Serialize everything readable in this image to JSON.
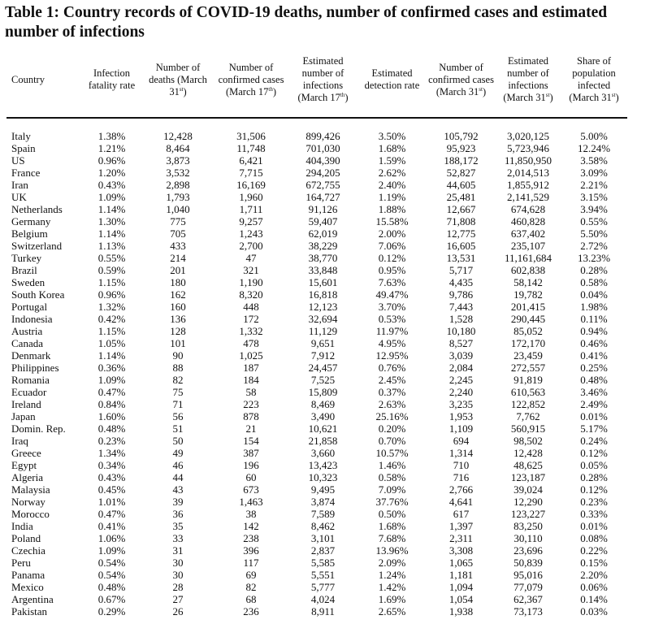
{
  "title": "Table 1: Country records of COVID-19 deaths, number of confirmed cases and estimated number of infections",
  "headers": [
    {
      "text": "Country",
      "sup": "",
      "tail": ""
    },
    {
      "text": "Infection fatality rate",
      "sup": "",
      "tail": ""
    },
    {
      "text": "Number of deaths (March 31",
      "sup": "st",
      "tail": ")"
    },
    {
      "text": "Number of confirmed cases (March 17",
      "sup": "th",
      "tail": ")"
    },
    {
      "text": "Estimated number of infections (March 17",
      "sup": "th",
      "tail": ")"
    },
    {
      "text": "Estimated detection rate",
      "sup": "",
      "tail": ""
    },
    {
      "text": "Number of confirmed cases (March 31",
      "sup": "st",
      "tail": ")"
    },
    {
      "text": "Estimated number of infections (March 31",
      "sup": "st",
      "tail": ")"
    },
    {
      "text": "Share of population infected (March 31",
      "sup": "st",
      "tail": ")"
    }
  ],
  "rows": [
    [
      "Italy",
      "1.38%",
      "12,428",
      "31,506",
      "899,426",
      "3.50%",
      "105,792",
      "3,020,125",
      "5.00%"
    ],
    [
      "Spain",
      "1.21%",
      "8,464",
      "11,748",
      "701,030",
      "1.68%",
      "95,923",
      "5,723,946",
      "12.24%"
    ],
    [
      "US",
      "0.96%",
      "3,873",
      "6,421",
      "404,390",
      "1.59%",
      "188,172",
      "11,850,950",
      "3.58%"
    ],
    [
      "France",
      "1.20%",
      "3,532",
      "7,715",
      "294,205",
      "2.62%",
      "52,827",
      "2,014,513",
      "3.09%"
    ],
    [
      "Iran",
      "0.43%",
      "2,898",
      "16,169",
      "672,755",
      "2.40%",
      "44,605",
      "1,855,912",
      "2.21%"
    ],
    [
      "UK",
      "1.09%",
      "1,793",
      "1,960",
      "164,727",
      "1.19%",
      "25,481",
      "2,141,529",
      "3.15%"
    ],
    [
      "Netherlands",
      "1.14%",
      "1,040",
      "1,711",
      "91,126",
      "1.88%",
      "12,667",
      "674,628",
      "3.94%"
    ],
    [
      "Germany",
      "1.30%",
      "775",
      "9,257",
      "59,407",
      "15.58%",
      "71,808",
      "460,828",
      "0.55%"
    ],
    [
      "Belgium",
      "1.14%",
      "705",
      "1,243",
      "62,019",
      "2.00%",
      "12,775",
      "637,402",
      "5.50%"
    ],
    [
      "Switzerland",
      "1.13%",
      "433",
      "2,700",
      "38,229",
      "7.06%",
      "16,605",
      "235,107",
      "2.72%"
    ],
    [
      "Turkey",
      "0.55%",
      "214",
      "47",
      "38,770",
      "0.12%",
      "13,531",
      "11,161,684",
      "13.23%"
    ],
    [
      "Brazil",
      "0.59%",
      "201",
      "321",
      "33,848",
      "0.95%",
      "5,717",
      "602,838",
      "0.28%"
    ],
    [
      "Sweden",
      "1.15%",
      "180",
      "1,190",
      "15,601",
      "7.63%",
      "4,435",
      "58,142",
      "0.58%"
    ],
    [
      "South Korea",
      "0.96%",
      "162",
      "8,320",
      "16,818",
      "49.47%",
      "9,786",
      "19,782",
      "0.04%"
    ],
    [
      "Portugal",
      "1.32%",
      "160",
      "448",
      "12,123",
      "3.70%",
      "7,443",
      "201,415",
      "1.98%"
    ],
    [
      "Indonesia",
      "0.42%",
      "136",
      "172",
      "32,694",
      "0.53%",
      "1,528",
      "290,445",
      "0.11%"
    ],
    [
      "Austria",
      "1.15%",
      "128",
      "1,332",
      "11,129",
      "11.97%",
      "10,180",
      "85,052",
      "0.94%"
    ],
    [
      "Canada",
      "1.05%",
      "101",
      "478",
      "9,651",
      "4.95%",
      "8,527",
      "172,170",
      "0.46%"
    ],
    [
      "Denmark",
      "1.14%",
      "90",
      "1,025",
      "7,912",
      "12.95%",
      "3,039",
      "23,459",
      "0.41%"
    ],
    [
      "Philippines",
      "0.36%",
      "88",
      "187",
      "24,457",
      "0.76%",
      "2,084",
      "272,557",
      "0.25%"
    ],
    [
      "Romania",
      "1.09%",
      "82",
      "184",
      "7,525",
      "2.45%",
      "2,245",
      "91,819",
      "0.48%"
    ],
    [
      "Ecuador",
      "0.47%",
      "75",
      "58",
      "15,809",
      "0.37%",
      "2,240",
      "610,563",
      "3.46%"
    ],
    [
      "Ireland",
      "0.84%",
      "71",
      "223",
      "8,469",
      "2.63%",
      "3,235",
      "122,852",
      "2.49%"
    ],
    [
      "Japan",
      "1.60%",
      "56",
      "878",
      "3,490",
      "25.16%",
      "1,953",
      "7,762",
      "0.01%"
    ],
    [
      "Domin. Rep.",
      "0.48%",
      "51",
      "21",
      "10,621",
      "0.20%",
      "1,109",
      "560,915",
      "5.17%"
    ],
    [
      "Iraq",
      "0.23%",
      "50",
      "154",
      "21,858",
      "0.70%",
      "694",
      "98,502",
      "0.24%"
    ],
    [
      "Greece",
      "1.34%",
      "49",
      "387",
      "3,660",
      "10.57%",
      "1,314",
      "12,428",
      "0.12%"
    ],
    [
      "Egypt",
      "0.34%",
      "46",
      "196",
      "13,423",
      "1.46%",
      "710",
      "48,625",
      "0.05%"
    ],
    [
      "Algeria",
      "0.43%",
      "44",
      "60",
      "10,323",
      "0.58%",
      "716",
      "123,187",
      "0.28%"
    ],
    [
      "Malaysia",
      "0.45%",
      "43",
      "673",
      "9,495",
      "7.09%",
      "2,766",
      "39,024",
      "0.12%"
    ],
    [
      "Norway",
      "1.01%",
      "39",
      "1,463",
      "3,874",
      "37.76%",
      "4,641",
      "12,290",
      "0.23%"
    ],
    [
      "Morocco",
      "0.47%",
      "36",
      "38",
      "7,589",
      "0.50%",
      "617",
      "123,227",
      "0.33%"
    ],
    [
      "India",
      "0.41%",
      "35",
      "142",
      "8,462",
      "1.68%",
      "1,397",
      "83,250",
      "0.01%"
    ],
    [
      "Poland",
      "1.06%",
      "33",
      "238",
      "3,101",
      "7.68%",
      "2,311",
      "30,110",
      "0.08%"
    ],
    [
      "Czechia",
      "1.09%",
      "31",
      "396",
      "2,837",
      "13.96%",
      "3,308",
      "23,696",
      "0.22%"
    ],
    [
      "Peru",
      "0.54%",
      "30",
      "117",
      "5,585",
      "2.09%",
      "1,065",
      "50,839",
      "0.15%"
    ],
    [
      "Panama",
      "0.54%",
      "30",
      "69",
      "5,551",
      "1.24%",
      "1,181",
      "95,016",
      "2.20%"
    ],
    [
      "Mexico",
      "0.48%",
      "28",
      "82",
      "5,777",
      "1.42%",
      "1,094",
      "77,079",
      "0.06%"
    ],
    [
      "Argentina",
      "0.67%",
      "27",
      "68",
      "4,024",
      "1.69%",
      "1,054",
      "62,367",
      "0.14%"
    ],
    [
      "Pakistan",
      "0.29%",
      "26",
      "236",
      "8,911",
      "2.65%",
      "1,938",
      "73,173",
      "0.03%"
    ]
  ]
}
